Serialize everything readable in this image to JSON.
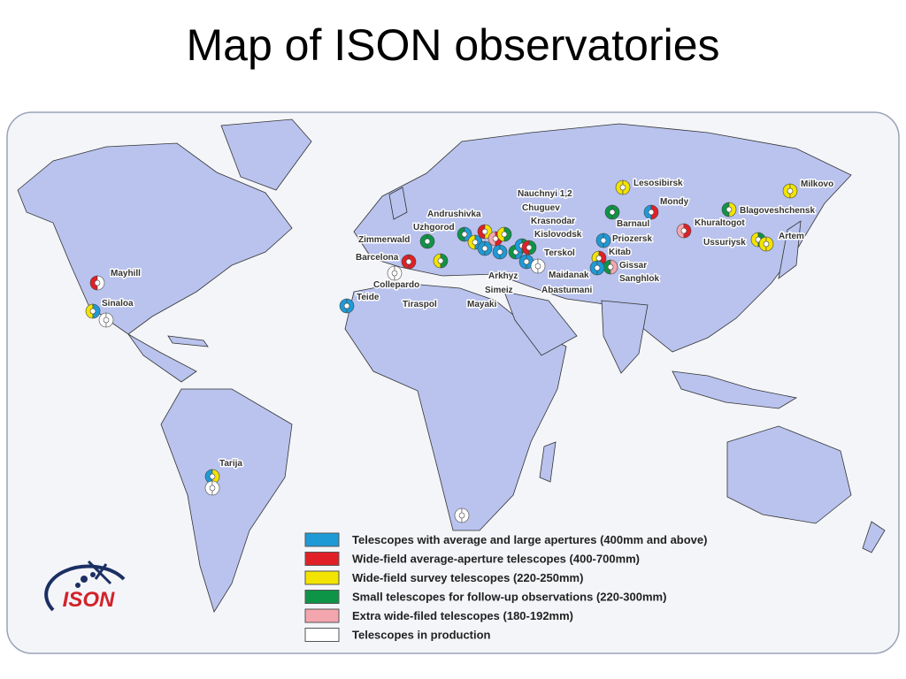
{
  "title": "Map of ISON observatories",
  "stations": [
    "Mayhill",
    "Sinaloa",
    "Tarija",
    "Teide",
    "Barcelona",
    "Zimmerwald",
    "Collepardo",
    "Tiraspol",
    "Mayaki",
    "Simeiz",
    "Arkhyz",
    "Andrushivka",
    "Uzhgorod",
    "Nauchnyi 1,2",
    "Chuguev",
    "Krasnodar",
    "Kislovodsk",
    "Terskol",
    "Maidanak",
    "Abastumani",
    "Priozersk",
    "Kitab",
    "Gissar",
    "Sanghlok",
    "Lesosibirsk",
    "Mondy",
    "Barnaul",
    "Khuraltogot",
    "Blagoveshchensk",
    "Ussuriysk",
    "Artem",
    "Milkovo"
  ],
  "legend": [
    {
      "color": "#1e9ad6",
      "label": "Telescopes with average and large apertures (400mm and above)"
    },
    {
      "color": "#e02026",
      "label": "Wide-field average-aperture telescopes (400-700mm)"
    },
    {
      "color": "#f2e400",
      "label": "Wide-field survey telescopes (220-250mm)"
    },
    {
      "color": "#0e9447",
      "label": "Small telescopes for follow-up observations (220-300mm)"
    },
    {
      "color": "#f4a6ae",
      "label": "Extra wide-filed telescopes (180-192mm)"
    },
    {
      "color": "#ffffff",
      "label": "Telescopes in production"
    }
  ],
  "logo": "ISON"
}
